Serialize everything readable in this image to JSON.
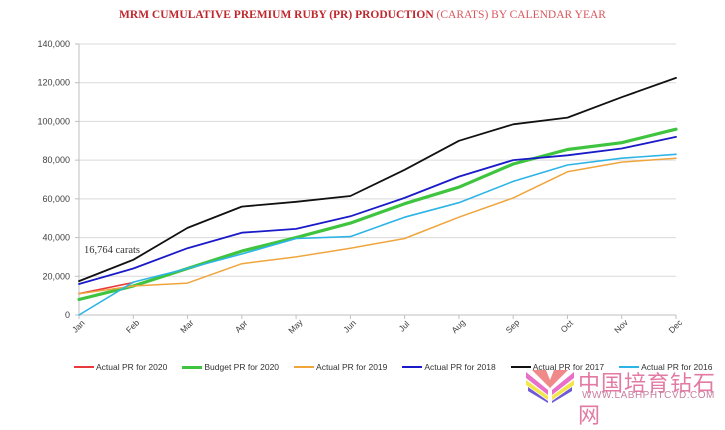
{
  "title": {
    "bold_part": "MRM CUMULATIVE PREMIUM RUBY (PR) PRODUCTION",
    "light_part": " (CARATS) BY CALENDAR YEAR"
  },
  "chart_data": {
    "type": "line",
    "title": "MRM CUMULATIVE PREMIUM RUBY (PR) PRODUCTION (CARATS) BY CALENDAR YEAR",
    "xlabel": "",
    "ylabel": "",
    "categories": [
      "Jan",
      "Feb",
      "Mar",
      "Apr",
      "May",
      "Jun",
      "Jul",
      "Aug",
      "Sep",
      "Oct",
      "Nov",
      "Dec"
    ],
    "ylim": [
      0,
      140000
    ],
    "yticks": [
      0,
      20000,
      40000,
      60000,
      80000,
      100000,
      120000,
      140000
    ],
    "ytick_labels": [
      "0",
      "20,000",
      "40,000",
      "60,000",
      "80,000",
      "100,000",
      "120,000",
      "140,000"
    ],
    "grid": true,
    "legend_position": "bottom",
    "annotations": [
      {
        "text": "16,764 carats",
        "near": "Feb"
      }
    ],
    "series": [
      {
        "name": "Actual PR for 2020",
        "color": "#e8393c",
        "width": 1.6,
        "values": [
          11000,
          16764
        ]
      },
      {
        "name": "Budget PR for 2020",
        "color": "#3fc43f",
        "width": 3.2,
        "values": [
          8000,
          15000,
          24000,
          33000,
          40000,
          47500,
          57500,
          66000,
          78000,
          85500,
          89000,
          96000
        ]
      },
      {
        "name": "Actual PR for 2019",
        "color": "#f0a53c",
        "width": 1.5,
        "values": [
          11000,
          15000,
          16500,
          26500,
          30000,
          34500,
          39500,
          50500,
          60500,
          74000,
          79000,
          81000
        ]
      },
      {
        "name": "Actual PR for 2018",
        "color": "#1a1ac8",
        "width": 1.8,
        "values": [
          16000,
          24000,
          34500,
          42500,
          44500,
          51000,
          60500,
          71500,
          80000,
          82500,
          86000,
          92000
        ]
      },
      {
        "name": "Actual PR for 2017",
        "color": "#111111",
        "width": 1.8,
        "values": [
          17500,
          28500,
          45000,
          56000,
          58500,
          61500,
          75000,
          90000,
          98500,
          102000,
          112500,
          122500
        ]
      },
      {
        "name": "Actual PR for 2016",
        "color": "#2db4e6",
        "width": 1.6,
        "values": [
          0,
          17000,
          24000,
          31500,
          39500,
          40500,
          50500,
          58000,
          69000,
          77500,
          81000,
          83000
        ]
      }
    ]
  },
  "watermark": {
    "text_cn": "中国培育钻石网",
    "url": "WWW.LABHPHTCVD.COM"
  }
}
